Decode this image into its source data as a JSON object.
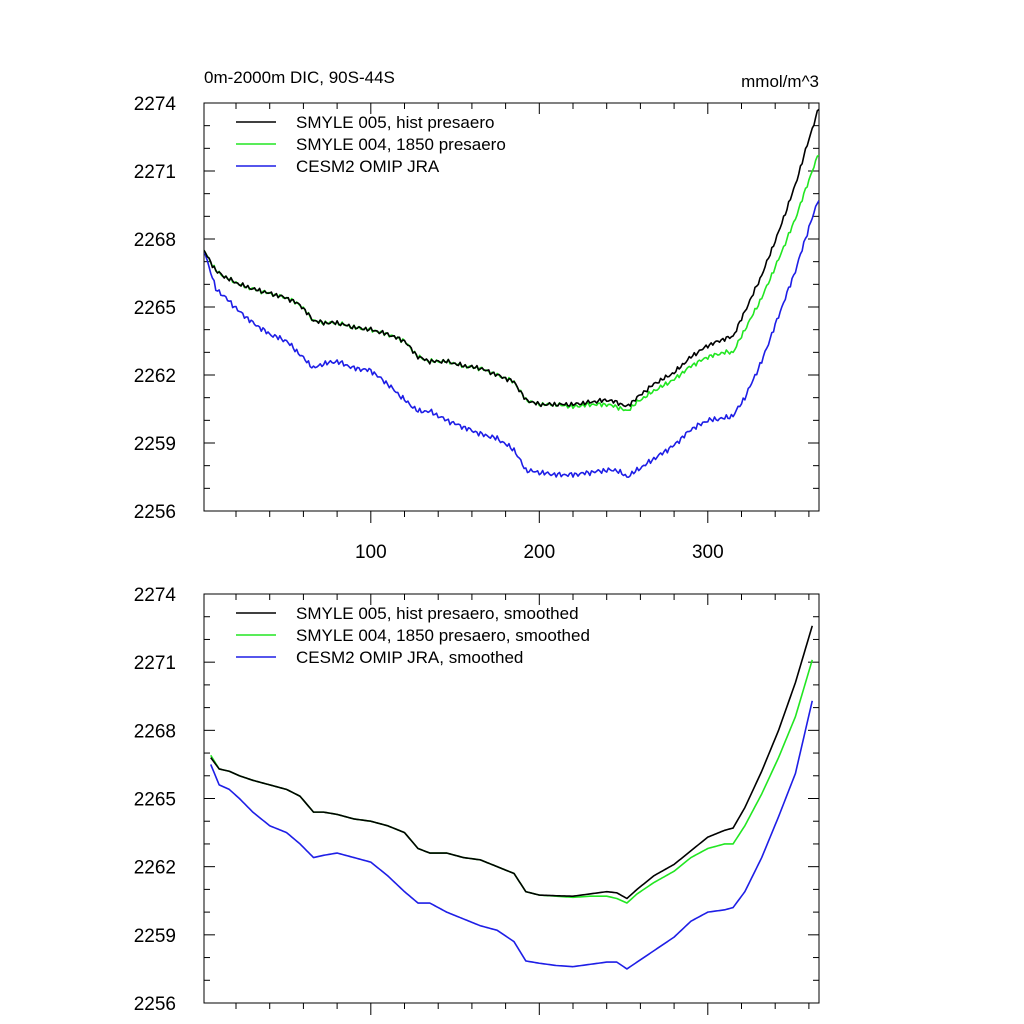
{
  "figure": {
    "title_left": "0m-2000m DIC, 90S-44S",
    "title_right": "mmol/m^3"
  },
  "colors": {
    "black": "#000000",
    "green": "#22e622",
    "blue": "#1e1ee6"
  },
  "chart_data": [
    {
      "type": "line",
      "title": "0m-2000m DIC, 90S-44S",
      "units": "mmol/m^3",
      "xlim": [
        1,
        366
      ],
      "ylim": [
        2256,
        2274
      ],
      "x_ticks": [
        100,
        200,
        300
      ],
      "x_tick_labels": [
        "100",
        "200",
        "300"
      ],
      "y_ticks": [
        2256,
        2259,
        2262,
        2265,
        2268,
        2271,
        2274
      ],
      "y_tick_labels": [
        "2256",
        "2259",
        "2262",
        "2265",
        "2268",
        "2271",
        "2274"
      ],
      "legend_position": "top-left",
      "series": [
        {
          "name": "SMYLE 005, hist presaero",
          "color": "#000000",
          "noise": 0.12,
          "x": [
            1,
            8,
            14,
            22,
            30,
            40,
            50,
            58,
            66,
            72,
            80,
            90,
            100,
            110,
            120,
            128,
            135,
            145,
            155,
            165,
            175,
            185,
            192,
            200,
            210,
            220,
            230,
            240,
            246,
            252,
            258,
            268,
            280,
            290,
            300,
            310,
            315,
            322,
            332,
            342,
            352,
            360,
            366
          ],
          "y": [
            2267.5,
            2266.6,
            2266.3,
            2266.0,
            2265.8,
            2265.6,
            2265.4,
            2265.1,
            2264.4,
            2264.3,
            2264.3,
            2264.1,
            2264.0,
            2263.8,
            2263.5,
            2262.8,
            2262.6,
            2262.6,
            2262.4,
            2262.3,
            2262.0,
            2261.7,
            2260.9,
            2260.7,
            2260.7,
            2260.7,
            2260.8,
            2260.9,
            2260.8,
            2260.6,
            2261.0,
            2261.6,
            2262.1,
            2262.8,
            2263.3,
            2263.6,
            2263.7,
            2264.8,
            2266.4,
            2268.3,
            2270.4,
            2272.4,
            2273.8
          ]
        },
        {
          "name": "SMYLE 004, 1850 presaero",
          "color": "#22e622",
          "noise": 0.12,
          "x": [
            1,
            8,
            14,
            22,
            30,
            40,
            50,
            58,
            66,
            72,
            80,
            90,
            100,
            110,
            120,
            128,
            135,
            145,
            155,
            165,
            175,
            185,
            192,
            200,
            210,
            220,
            230,
            240,
            246,
            252,
            258,
            268,
            280,
            290,
            300,
            310,
            315,
            322,
            332,
            342,
            352,
            360,
            366
          ],
          "y": [
            2267.5,
            2266.6,
            2266.3,
            2266.0,
            2265.8,
            2265.6,
            2265.4,
            2265.1,
            2264.4,
            2264.3,
            2264.3,
            2264.1,
            2264.0,
            2263.8,
            2263.5,
            2262.8,
            2262.6,
            2262.6,
            2262.4,
            2262.3,
            2262.0,
            2261.7,
            2260.9,
            2260.7,
            2260.7,
            2260.6,
            2260.7,
            2260.7,
            2260.6,
            2260.4,
            2260.8,
            2261.3,
            2261.8,
            2262.4,
            2262.8,
            2263.0,
            2263.0,
            2264.0,
            2265.4,
            2267.1,
            2268.9,
            2270.6,
            2271.8
          ]
        },
        {
          "name": "CESM2 OMIP JRA",
          "color": "#1e1ee6",
          "noise": 0.14,
          "x": [
            1,
            8,
            14,
            22,
            30,
            40,
            50,
            58,
            66,
            72,
            80,
            90,
            100,
            110,
            120,
            128,
            135,
            145,
            155,
            165,
            175,
            185,
            192,
            200,
            210,
            220,
            230,
            240,
            246,
            252,
            258,
            268,
            280,
            290,
            300,
            310,
            315,
            322,
            332,
            342,
            352,
            360,
            366
          ],
          "y": [
            2267.5,
            2265.8,
            2265.4,
            2264.8,
            2264.3,
            2263.8,
            2263.5,
            2262.9,
            2262.3,
            2262.5,
            2262.6,
            2262.3,
            2262.2,
            2261.6,
            2260.9,
            2260.4,
            2260.4,
            2260.0,
            2259.7,
            2259.4,
            2259.2,
            2258.7,
            2257.8,
            2257.7,
            2257.6,
            2257.6,
            2257.7,
            2257.8,
            2257.8,
            2257.5,
            2257.8,
            2258.3,
            2258.9,
            2259.6,
            2260.0,
            2260.1,
            2260.2,
            2261.0,
            2262.6,
            2264.6,
            2266.6,
            2268.5,
            2269.8
          ]
        }
      ]
    },
    {
      "type": "line",
      "xlim": [
        1,
        366
      ],
      "ylim": [
        2256,
        2274
      ],
      "x_ticks": [
        100,
        200,
        300
      ],
      "y_ticks": [
        2256,
        2259,
        2262,
        2265,
        2268,
        2271,
        2274
      ],
      "y_tick_labels": [
        "2256",
        "2259",
        "2262",
        "2265",
        "2268",
        "2271",
        "2274"
      ],
      "legend_position": "top-left",
      "series": [
        {
          "name": "SMYLE 005, hist presaero, smoothed",
          "color": "#000000",
          "noise": 0,
          "x": [
            5,
            10,
            16,
            22,
            30,
            40,
            50,
            58,
            66,
            72,
            80,
            90,
            100,
            110,
            120,
            128,
            135,
            145,
            155,
            165,
            175,
            185,
            192,
            200,
            210,
            220,
            230,
            240,
            246,
            252,
            258,
            268,
            280,
            290,
            300,
            310,
            315,
            322,
            332,
            342,
            352,
            362
          ],
          "y": [
            2266.8,
            2266.3,
            2266.2,
            2266.0,
            2265.8,
            2265.6,
            2265.4,
            2265.1,
            2264.4,
            2264.4,
            2264.3,
            2264.1,
            2264.0,
            2263.8,
            2263.5,
            2262.8,
            2262.6,
            2262.6,
            2262.4,
            2262.3,
            2262.0,
            2261.7,
            2260.9,
            2260.75,
            2260.72,
            2260.7,
            2260.8,
            2260.9,
            2260.85,
            2260.6,
            2261.0,
            2261.6,
            2262.1,
            2262.7,
            2263.3,
            2263.6,
            2263.7,
            2264.6,
            2266.2,
            2268.0,
            2270.1,
            2272.6
          ]
        },
        {
          "name": "SMYLE 004, 1850 presaero, smoothed",
          "color": "#22e622",
          "noise": 0,
          "x": [
            5,
            10,
            16,
            22,
            30,
            40,
            50,
            58,
            66,
            72,
            80,
            90,
            100,
            110,
            120,
            128,
            135,
            145,
            155,
            165,
            175,
            185,
            192,
            200,
            210,
            220,
            230,
            240,
            246,
            252,
            258,
            268,
            280,
            290,
            300,
            310,
            315,
            322,
            332,
            342,
            352,
            362
          ],
          "y": [
            2266.9,
            2266.3,
            2266.2,
            2266.0,
            2265.8,
            2265.6,
            2265.4,
            2265.1,
            2264.4,
            2264.4,
            2264.3,
            2264.1,
            2264.0,
            2263.8,
            2263.5,
            2262.8,
            2262.6,
            2262.6,
            2262.4,
            2262.3,
            2262.0,
            2261.7,
            2260.9,
            2260.75,
            2260.7,
            2260.65,
            2260.7,
            2260.7,
            2260.6,
            2260.4,
            2260.8,
            2261.3,
            2261.8,
            2262.4,
            2262.8,
            2263.0,
            2263.0,
            2263.8,
            2265.2,
            2266.8,
            2268.6,
            2271.1
          ]
        },
        {
          "name": "CESM2 OMIP JRA, smoothed",
          "color": "#1e1ee6",
          "noise": 0,
          "x": [
            5,
            10,
            16,
            22,
            30,
            40,
            50,
            58,
            66,
            72,
            80,
            90,
            100,
            110,
            120,
            128,
            135,
            145,
            155,
            165,
            175,
            185,
            192,
            200,
            210,
            220,
            230,
            240,
            246,
            252,
            258,
            268,
            280,
            290,
            300,
            310,
            315,
            322,
            332,
            342,
            352,
            362
          ],
          "y": [
            2266.5,
            2265.6,
            2265.4,
            2265.0,
            2264.4,
            2263.8,
            2263.5,
            2263.0,
            2262.4,
            2262.5,
            2262.6,
            2262.4,
            2262.2,
            2261.6,
            2260.9,
            2260.4,
            2260.4,
            2260.0,
            2259.7,
            2259.4,
            2259.2,
            2258.7,
            2257.85,
            2257.75,
            2257.65,
            2257.6,
            2257.7,
            2257.8,
            2257.8,
            2257.5,
            2257.8,
            2258.3,
            2258.9,
            2259.6,
            2260.0,
            2260.1,
            2260.2,
            2260.9,
            2262.4,
            2264.2,
            2266.1,
            2269.3
          ]
        }
      ]
    }
  ]
}
